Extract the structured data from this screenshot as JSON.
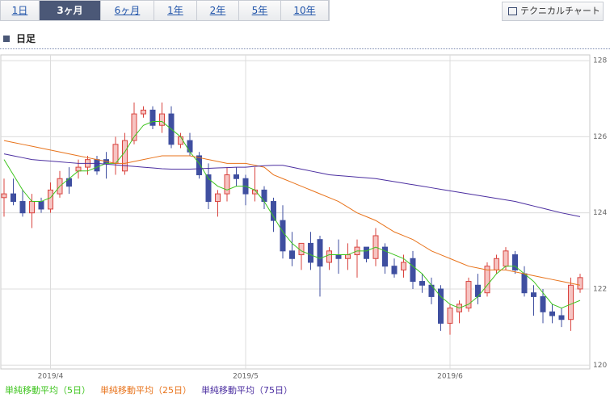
{
  "tabs": [
    "1日",
    "3ヶ月",
    "6ヶ月",
    "1年",
    "2年",
    "5年",
    "10年"
  ],
  "selected_tab": 1,
  "tech_button": "テクニカルチャート",
  "heading": "日足",
  "chart_data": {
    "type": "candlestick",
    "categories": [
      null,
      null,
      null,
      null,
      null,
      "2019/4",
      null,
      null,
      null,
      null,
      null,
      null,
      null,
      null,
      null,
      null,
      null,
      null,
      null,
      null,
      null,
      null,
      null,
      null,
      null,
      null,
      "2019/5",
      null,
      null,
      null,
      null,
      null,
      null,
      null,
      null,
      null,
      null,
      null,
      null,
      null,
      null,
      null,
      null,
      null,
      null,
      null,
      null,
      null,
      "2019/6",
      null,
      null,
      null,
      null,
      null,
      null,
      null,
      null,
      null,
      null,
      null,
      null,
      null,
      null
    ],
    "open": [
      124.4,
      124.5,
      124.3,
      124.0,
      124.3,
      124.1,
      124.5,
      124.9,
      125.1,
      125.2,
      125.4,
      125.4,
      125.3,
      125.1,
      125.9,
      126.6,
      126.7,
      126.3,
      126.6,
      125.8,
      125.9,
      125.5,
      125.0,
      124.3,
      124.5,
      125.0,
      124.9,
      124.5,
      124.6,
      124.3,
      123.8,
      123.0,
      122.9,
      123.2,
      123.3,
      122.7,
      122.9,
      122.8,
      122.9,
      123.1,
      122.8,
      123.1,
      122.6,
      122.5,
      122.8,
      122.2,
      122.1,
      122.0,
      121.1,
      121.4,
      121.5,
      122.1,
      121.9,
      122.5,
      122.6,
      122.9,
      122.4,
      121.9,
      121.8,
      121.4,
      121.3,
      121.2,
      122.0
    ],
    "high": [
      124.9,
      124.9,
      124.6,
      124.5,
      124.4,
      124.8,
      125.1,
      125.2,
      125.4,
      125.5,
      125.5,
      125.6,
      126.0,
      126.1,
      126.9,
      126.8,
      126.8,
      126.9,
      126.8,
      126.1,
      126.1,
      125.6,
      125.3,
      124.6,
      125.2,
      125.2,
      125.0,
      125.2,
      124.7,
      124.4,
      124.2,
      123.5,
      123.2,
      123.5,
      123.4,
      123.1,
      123.3,
      123.2,
      123.3,
      123.1,
      123.6,
      123.2,
      122.8,
      122.9,
      123.0,
      122.4,
      122.3,
      122.1,
      121.6,
      121.7,
      122.3,
      122.4,
      122.7,
      122.9,
      123.1,
      123.0,
      122.6,
      122.1,
      122.0,
      121.6,
      121.5,
      122.3,
      122.4
    ],
    "low": [
      123.9,
      124.2,
      123.9,
      123.6,
      124.0,
      124.0,
      124.4,
      124.5,
      124.9,
      125.0,
      125.0,
      124.9,
      125.0,
      125.0,
      125.8,
      126.5,
      126.2,
      126.1,
      125.7,
      125.7,
      125.5,
      124.9,
      124.1,
      123.9,
      124.3,
      124.7,
      124.2,
      124.3,
      124.1,
      123.5,
      122.8,
      122.6,
      122.5,
      122.5,
      121.8,
      122.5,
      122.4,
      122.5,
      122.3,
      122.7,
      122.6,
      122.4,
      122.3,
      122.3,
      122.0,
      121.9,
      121.6,
      120.9,
      120.8,
      121.1,
      121.4,
      121.6,
      121.8,
      122.4,
      122.5,
      122.4,
      121.8,
      121.3,
      121.1,
      121.1,
      121.0,
      120.9,
      121.9
    ],
    "close": [
      124.5,
      124.3,
      124.0,
      124.3,
      124.1,
      124.6,
      124.9,
      124.7,
      125.2,
      125.4,
      125.1,
      125.3,
      125.8,
      125.9,
      126.6,
      126.7,
      126.3,
      126.6,
      125.8,
      126.0,
      125.6,
      125.0,
      124.3,
      124.5,
      125.0,
      124.9,
      124.5,
      124.6,
      124.3,
      123.8,
      123.0,
      122.8,
      123.2,
      122.7,
      122.6,
      123.0,
      122.8,
      122.9,
      123.1,
      122.8,
      123.4,
      122.6,
      122.4,
      122.7,
      122.2,
      122.1,
      121.8,
      121.1,
      121.5,
      121.6,
      122.2,
      121.8,
      122.6,
      122.8,
      123.0,
      122.5,
      121.9,
      121.8,
      121.4,
      121.3,
      121.2,
      122.1,
      122.3
    ],
    "up_color": "#d9443f",
    "down_color": "#3f4fa0",
    "series": [
      {
        "name": "単純移動平均（5日）",
        "color": "#3ec41e",
        "values": [
          125.4,
          125.0,
          124.6,
          124.3,
          124.3,
          124.4,
          124.7,
          124.9,
          125.1,
          125.1,
          125.2,
          125.3,
          125.3,
          125.6,
          126.0,
          126.3,
          126.4,
          126.4,
          126.2,
          126.0,
          125.6,
          125.3,
          124.9,
          124.7,
          124.6,
          124.7,
          124.7,
          124.6,
          124.3,
          123.9,
          123.5,
          123.2,
          123.0,
          122.9,
          122.8,
          122.9,
          122.9,
          122.9,
          123.0,
          123.0,
          123.1,
          123.0,
          122.9,
          122.8,
          122.6,
          122.4,
          122.1,
          121.8,
          121.6,
          121.5,
          121.6,
          121.8,
          122.1,
          122.4,
          122.6,
          122.6,
          122.4,
          122.2,
          121.9,
          121.6,
          121.5,
          121.6,
          121.7
        ]
      },
      {
        "name": "単純移動平均（25日）",
        "color": "#e8731b",
        "values": [
          125.9,
          125.85,
          125.8,
          125.75,
          125.7,
          125.65,
          125.6,
          125.55,
          125.5,
          125.45,
          125.4,
          125.35,
          125.3,
          125.3,
          125.35,
          125.4,
          125.45,
          125.5,
          125.5,
          125.5,
          125.5,
          125.45,
          125.4,
          125.35,
          125.3,
          125.3,
          125.3,
          125.25,
          125.2,
          125.0,
          124.9,
          124.8,
          124.7,
          124.6,
          124.5,
          124.4,
          124.3,
          124.15,
          124.0,
          123.9,
          123.8,
          123.65,
          123.5,
          123.4,
          123.3,
          123.15,
          123.0,
          122.9,
          122.8,
          122.7,
          122.6,
          122.55,
          122.5,
          122.5,
          122.5,
          122.45,
          122.4,
          122.35,
          122.3,
          122.25,
          122.2,
          122.15,
          122.1
        ]
      },
      {
        "name": "単純移動平均（75日）",
        "color": "#4b2ea0",
        "values": [
          125.55,
          125.5,
          125.45,
          125.4,
          125.38,
          125.36,
          125.34,
          125.32,
          125.3,
          125.3,
          125.3,
          125.28,
          125.26,
          125.24,
          125.22,
          125.2,
          125.18,
          125.16,
          125.15,
          125.15,
          125.15,
          125.16,
          125.17,
          125.18,
          125.19,
          125.2,
          125.2,
          125.22,
          125.24,
          125.25,
          125.25,
          125.2,
          125.15,
          125.1,
          125.05,
          125.0,
          124.98,
          124.96,
          124.94,
          124.92,
          124.9,
          124.86,
          124.82,
          124.78,
          124.74,
          124.7,
          124.66,
          124.62,
          124.58,
          124.54,
          124.5,
          124.46,
          124.42,
          124.38,
          124.34,
          124.3,
          124.24,
          124.18,
          124.12,
          124.06,
          124.0,
          123.95,
          123.9
        ]
      }
    ],
    "ylim": [
      119.9,
      128.15
    ],
    "yticks": [
      120,
      122,
      124,
      126,
      128
    ],
    "grid": true
  }
}
